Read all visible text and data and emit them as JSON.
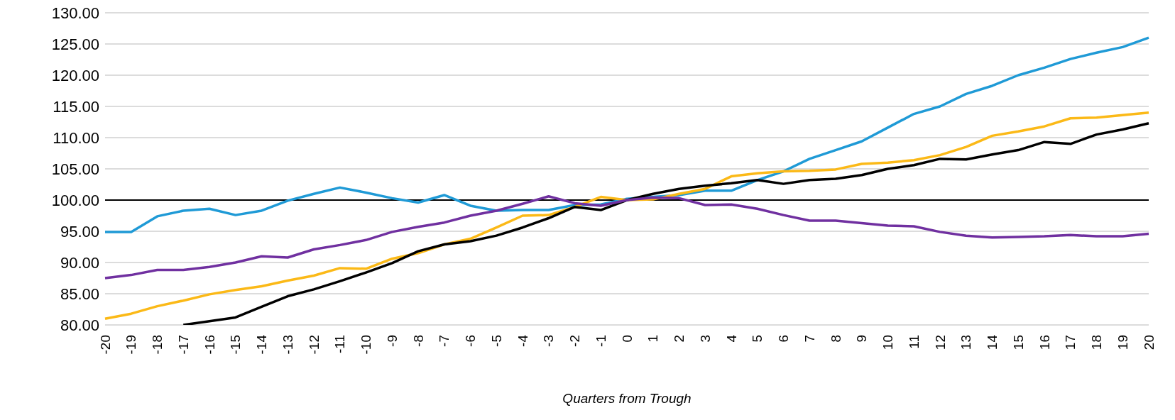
{
  "chart_data": {
    "type": "line",
    "xlabel": "Quarters from Trough",
    "categories": [
      "-20",
      "-19",
      "-18",
      "-17",
      "-16",
      "-15",
      "-14",
      "-13",
      "-12",
      "-11",
      "-10",
      "-9",
      "-8",
      "-7",
      "-6",
      "-5",
      "-4",
      "-3",
      "-2",
      "-1",
      "0",
      "1",
      "2",
      "3",
      "4",
      "5",
      "6",
      "7",
      "8",
      "9",
      "10",
      "11",
      "12",
      "13",
      "14",
      "15",
      "16",
      "17",
      "18",
      "19",
      "20"
    ],
    "series": [
      {
        "color": "#1f9ad6",
        "values": [
          94.9,
          94.9,
          97.4,
          98.3,
          98.6,
          97.6,
          98.3,
          99.9,
          101.0,
          102.0,
          101.2,
          100.3,
          99.6,
          100.8,
          99.1,
          98.3,
          98.4,
          98.4,
          99.2,
          99.3,
          100.2,
          100.5,
          100.8,
          101.5,
          101.5,
          103.2,
          104.6,
          106.6,
          108.0,
          109.4,
          111.6,
          113.8,
          115.0,
          117.0,
          118.3,
          120.0,
          121.2,
          122.6,
          123.6,
          124.5,
          126.0
        ]
      },
      {
        "color": "#fbb917",
        "values": [
          81.0,
          81.8,
          83.0,
          83.9,
          84.9,
          85.6,
          86.2,
          87.1,
          87.9,
          89.1,
          89.0,
          90.6,
          91.5,
          92.9,
          93.8,
          95.6,
          97.5,
          97.6,
          98.9,
          100.5,
          100.0,
          100.1,
          101.0,
          101.8,
          103.8,
          104.3,
          104.6,
          104.7,
          104.9,
          105.8,
          106.0,
          106.4,
          107.2,
          108.5,
          110.3,
          111.0,
          111.8,
          113.1,
          113.2,
          113.6,
          114.0
        ]
      },
      {
        "color": "#000000",
        "values": [
          null,
          null,
          null,
          80.0,
          80.6,
          81.2,
          82.9,
          84.6,
          85.7,
          87.0,
          88.4,
          89.9,
          91.8,
          92.9,
          93.4,
          94.3,
          95.6,
          97.1,
          98.9,
          98.4,
          100.0,
          101.0,
          101.8,
          102.3,
          102.7,
          103.2,
          102.6,
          103.2,
          103.4,
          104.0,
          105.0,
          105.6,
          106.6,
          106.5,
          107.3,
          108.0,
          109.3,
          109.0,
          110.5,
          111.3,
          112.3
        ]
      },
      {
        "color": "#7030a0",
        "values": [
          87.5,
          88.0,
          88.8,
          88.8,
          89.3,
          90.0,
          91.0,
          90.8,
          92.1,
          92.8,
          93.6,
          94.9,
          95.7,
          96.4,
          97.5,
          98.3,
          99.4,
          100.6,
          99.5,
          99.1,
          100.0,
          100.4,
          100.3,
          99.2,
          99.3,
          98.6,
          97.6,
          96.7,
          96.7,
          96.3,
          95.9,
          95.8,
          94.9,
          94.3,
          94.0,
          94.1,
          94.2,
          94.4,
          94.2,
          94.2,
          94.6
        ]
      }
    ],
    "ylim": [
      80,
      130
    ],
    "yticks": [
      {
        "value": 80,
        "label": "80.00"
      },
      {
        "value": 85,
        "label": "85.00"
      },
      {
        "value": 90,
        "label": "90.00"
      },
      {
        "value": 95,
        "label": "95.00"
      },
      {
        "value": 100,
        "label": "100.00"
      },
      {
        "value": 105,
        "label": "105.00"
      },
      {
        "value": 110,
        "label": "110.00"
      },
      {
        "value": 115,
        "label": "115.00"
      },
      {
        "value": 120,
        "label": "120.00"
      },
      {
        "value": 125,
        "label": "125.00"
      },
      {
        "value": 130,
        "label": "130.00"
      }
    ],
    "ref_lines": [
      {
        "axis": "y",
        "value": 100,
        "color": "#000000"
      }
    ],
    "grid": "y",
    "legend": false,
    "marker": "none",
    "line_style": "solid"
  }
}
